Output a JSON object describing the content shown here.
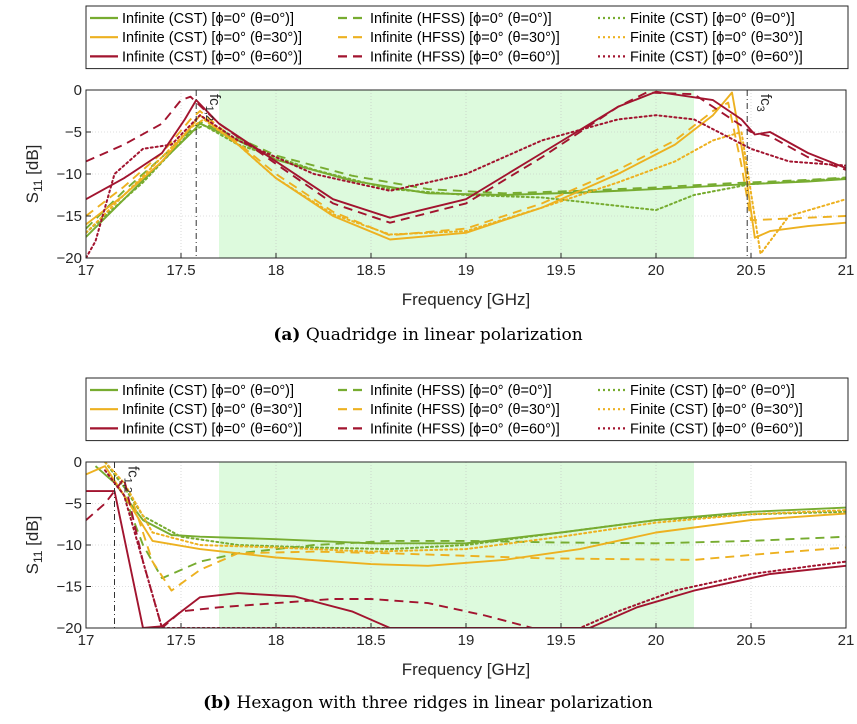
{
  "colors": {
    "green": "#77AC30",
    "yellow": "#EDB120",
    "red": "#A2142F",
    "band": "#DDFADD"
  },
  "legend_entries": [
    {
      "label": "Infinite (CST) [ϕ=0° (θ=0°)]",
      "color": "green",
      "dash": "solid"
    },
    {
      "label": "Infinite (HFSS) [ϕ=0° (θ=0°)]",
      "color": "green",
      "dash": "dashed"
    },
    {
      "label": "Finite (CST) [ϕ=0° (θ=0°)]",
      "color": "green",
      "dash": "dotted"
    },
    {
      "label": "Infinite (CST) [ϕ=0° (θ=30°)]",
      "color": "yellow",
      "dash": "solid"
    },
    {
      "label": "Infinite (HFSS) [ϕ=0° (θ=30°)]",
      "color": "yellow",
      "dash": "dashed"
    },
    {
      "label": "Finite (CST) [ϕ=0° (θ=30°)]",
      "color": "yellow",
      "dash": "dotted"
    },
    {
      "label": "Infinite (CST) [ϕ=0° (θ=60°)]",
      "color": "red",
      "dash": "solid"
    },
    {
      "label": "Infinite (HFSS) [ϕ=0° (θ=60°)]",
      "color": "red",
      "dash": "dashed"
    },
    {
      "label": "Finite (CST) [ϕ=0° (θ=60°)]",
      "color": "red",
      "dash": "dotted"
    }
  ],
  "chart_data": [
    {
      "type": "line",
      "caption_tag": "(a)",
      "caption_text": "Quadridge in linear polarization",
      "xlabel": "Frequency [GHz]",
      "ylabel": "S",
      "ylabel_sub": "11",
      "ylabel_unit": " [dB]",
      "xlim": [
        17,
        21
      ],
      "ylim": [
        -20,
        0
      ],
      "xticks": [
        17,
        17.5,
        18,
        18.5,
        19,
        19.5,
        20,
        20.5,
        21
      ],
      "yticks": [
        0,
        -5,
        -10,
        -15,
        -20
      ],
      "shaded_band": [
        17.7,
        20.2
      ],
      "markers": [
        {
          "x": 17.58,
          "label": "fc",
          "sub": "1,2"
        },
        {
          "x": 20.48,
          "label": "fc",
          "sub": "3"
        }
      ],
      "grid": true,
      "series": [
        {
          "name": "Infinite (CST) [ϕ=0° (θ=0°)]",
          "color": "green",
          "dash": "solid",
          "x": [
            17,
            17.2,
            17.4,
            17.55,
            17.6,
            17.8,
            18,
            18.4,
            18.8,
            19.2,
            19.6,
            20,
            20.4,
            20.8,
            21
          ],
          "y": [
            -17.5,
            -13,
            -8.5,
            -5.2,
            -4,
            -6,
            -8.3,
            -10.8,
            -12.3,
            -12.5,
            -12.2,
            -11.8,
            -11.3,
            -10.9,
            -10.6
          ]
        },
        {
          "name": "Infinite (HFSS) [ϕ=0° (θ=0°)]",
          "color": "green",
          "dash": "dashed",
          "x": [
            17,
            17.2,
            17.4,
            17.55,
            17.6,
            17.8,
            18,
            18.4,
            18.8,
            19.2,
            19.6,
            20,
            20.4,
            20.8,
            21
          ],
          "y": [
            -16.5,
            -12,
            -8,
            -4.8,
            -3.8,
            -5.7,
            -7.8,
            -10.2,
            -11.8,
            -12.3,
            -12,
            -11.6,
            -11.1,
            -10.7,
            -10.4
          ]
        },
        {
          "name": "Finite (CST) [ϕ=0° (θ=0°)]",
          "color": "green",
          "dash": "dotted",
          "x": [
            17,
            17.3,
            17.55,
            17.62,
            17.8,
            18.2,
            18.6,
            19,
            19.4,
            19.8,
            20,
            20.2,
            20.5,
            20.8,
            21
          ],
          "y": [
            -17,
            -11,
            -5,
            -4.2,
            -6.5,
            -9.5,
            -11.8,
            -12.5,
            -12.8,
            -13.8,
            -14.3,
            -12.5,
            -11.2,
            -10.8,
            -10.5
          ]
        },
        {
          "name": "Infinite (CST) [ϕ=0° (θ=30°)]",
          "color": "yellow",
          "dash": "solid",
          "x": [
            17,
            17.2,
            17.4,
            17.55,
            17.6,
            17.8,
            18,
            18.3,
            18.6,
            19,
            19.4,
            19.8,
            20.1,
            20.3,
            20.4,
            20.46,
            20.52,
            20.6,
            20.8,
            21
          ],
          "y": [
            -16,
            -12.5,
            -8.5,
            -4.5,
            -3,
            -6.5,
            -10.5,
            -15,
            -17.8,
            -17,
            -14,
            -10,
            -6.5,
            -3,
            -0.3,
            -8,
            -17.6,
            -16.8,
            -16.2,
            -15.8
          ]
        },
        {
          "name": "Infinite (HFSS) [ϕ=0° (θ=30°)]",
          "color": "yellow",
          "dash": "dashed",
          "x": [
            17,
            17.2,
            17.4,
            17.55,
            17.6,
            17.8,
            18,
            18.3,
            18.6,
            19,
            19.4,
            19.8,
            20.1,
            20.3,
            20.38,
            20.45,
            20.5,
            20.7,
            21
          ],
          "y": [
            -15,
            -11.5,
            -7.5,
            -3.5,
            -2.5,
            -6.3,
            -10,
            -14.5,
            -17.3,
            -16.5,
            -13.5,
            -9.5,
            -6,
            -2.5,
            -1.5,
            -9,
            -15.5,
            -15.3,
            -15
          ]
        },
        {
          "name": "Finite (CST) [ϕ=0° (θ=30°)]",
          "color": "yellow",
          "dash": "dotted",
          "x": [
            17,
            17.2,
            17.4,
            17.55,
            17.62,
            17.8,
            18,
            18.3,
            18.6,
            19,
            19.4,
            19.8,
            20.1,
            20.3,
            20.45,
            20.55,
            20.7,
            21
          ],
          "y": [
            -17,
            -12.5,
            -8,
            -4.5,
            -3.5,
            -6.5,
            -10.5,
            -14.8,
            -17.2,
            -16.8,
            -14,
            -11,
            -8.5,
            -6,
            -5,
            -19.5,
            -15,
            -13
          ]
        },
        {
          "name": "Infinite (CST) [ϕ=0° (θ=60°)]",
          "color": "red",
          "dash": "solid",
          "x": [
            17,
            17.2,
            17.4,
            17.52,
            17.58,
            17.7,
            18,
            18.3,
            18.6,
            19,
            19.4,
            19.8,
            20,
            20.3,
            20.45,
            20.52,
            20.6,
            20.8,
            21
          ],
          "y": [
            -13,
            -10.5,
            -7.5,
            -3.5,
            -1.2,
            -4,
            -8.5,
            -13,
            -15.2,
            -13,
            -7.5,
            -2,
            -0.2,
            -1.2,
            -3.5,
            -5.3,
            -5.0,
            -7.5,
            -9.3
          ]
        },
        {
          "name": "Infinite (HFSS) [ϕ=0° (θ=60°)]",
          "color": "red",
          "dash": "dashed",
          "x": [
            17,
            17.2,
            17.4,
            17.5,
            17.55,
            17.7,
            18,
            18.3,
            18.6,
            19,
            19.4,
            19.8,
            19.95,
            20.2,
            20.4,
            20.5,
            20.6,
            20.8,
            21
          ],
          "y": [
            -8.5,
            -6.5,
            -4,
            -1.2,
            -0.8,
            -4,
            -8.8,
            -13.5,
            -15.8,
            -13.5,
            -8,
            -2,
            -0.3,
            -0.5,
            -3.5,
            -5,
            -5.5,
            -8,
            -9.5
          ]
        },
        {
          "name": "Finite (CST) [ϕ=0° (θ=60°)]",
          "color": "red",
          "dash": "dotted",
          "x": [
            17,
            17.05,
            17.15,
            17.3,
            17.45,
            17.6,
            17.8,
            18.2,
            18.6,
            19,
            19.4,
            19.8,
            20,
            20.2,
            20.5,
            20.7,
            21
          ],
          "y": [
            -20,
            -18,
            -10,
            -7,
            -6.5,
            -3,
            -6,
            -10,
            -12,
            -10,
            -6,
            -3.5,
            -3,
            -3.5,
            -7,
            -8.5,
            -9
          ]
        }
      ]
    },
    {
      "type": "line",
      "caption_tag": "(b)",
      "caption_text": "Hexagon with three ridges in linear polarization",
      "xlabel": "Frequency [GHz]",
      "ylabel": "S",
      "ylabel_sub": "11",
      "ylabel_unit": " [dB]",
      "xlim": [
        17,
        21
      ],
      "ylim": [
        -20,
        0
      ],
      "xticks": [
        17,
        17.5,
        18,
        18.5,
        19,
        19.5,
        20,
        20.5,
        21
      ],
      "yticks": [
        0,
        -5,
        -10,
        -15,
        -20
      ],
      "shaded_band": [
        17.7,
        20.2
      ],
      "markers": [
        {
          "x": 17.15,
          "label": "fc",
          "sub": "1,2"
        }
      ],
      "grid": true,
      "series": [
        {
          "name": "Infinite (CST) [ϕ=0° (θ=0°)]",
          "color": "green",
          "dash": "solid",
          "x": [
            17.05,
            17.15,
            17.3,
            17.45,
            17.6,
            18,
            18.5,
            19,
            19.5,
            20,
            20.5,
            21
          ],
          "y": [
            -0.5,
            -2.5,
            -7,
            -8.8,
            -9,
            -9.3,
            -9.8,
            -9.8,
            -8.5,
            -7,
            -6,
            -5.5
          ]
        },
        {
          "name": "Infinite (HFSS) [ϕ=0° (θ=0°)]",
          "color": "green",
          "dash": "dashed",
          "x": [
            17.2,
            17.3,
            17.4,
            17.6,
            17.8,
            18.2,
            18.6,
            19,
            19.5,
            20,
            20.5,
            21
          ],
          "y": [
            -4,
            -10,
            -14,
            -12,
            -11,
            -10,
            -9.5,
            -9.5,
            -9.7,
            -9.8,
            -9.5,
            -9
          ]
        },
        {
          "name": "Finite (CST) [ϕ=0° (θ=0°)]",
          "color": "green",
          "dash": "dotted",
          "x": [
            17.1,
            17.2,
            17.3,
            17.5,
            17.8,
            18.2,
            18.6,
            19,
            19.5,
            20,
            20.5,
            21
          ],
          "y": [
            0,
            -3,
            -6.5,
            -9,
            -10,
            -10.3,
            -10.5,
            -10,
            -8.5,
            -7,
            -6.3,
            -6
          ]
        },
        {
          "name": "Infinite (CST) [ϕ=0° (θ=30°)]",
          "color": "yellow",
          "dash": "solid",
          "x": [
            17,
            17.1,
            17.2,
            17.35,
            17.6,
            18,
            18.5,
            18.8,
            19.2,
            19.6,
            20,
            20.5,
            21
          ],
          "y": [
            -1.5,
            -0.5,
            -4,
            -9.5,
            -10.5,
            -11.5,
            -12.3,
            -12.5,
            -11.8,
            -10.5,
            -8.5,
            -7,
            -6.2
          ]
        },
        {
          "name": "Infinite (HFSS) [ϕ=0° (θ=30°)]",
          "color": "yellow",
          "dash": "dashed",
          "x": [
            17.25,
            17.35,
            17.45,
            17.6,
            17.8,
            18.2,
            18.6,
            19,
            19.4,
            19.8,
            20.2,
            20.6,
            21
          ],
          "y": [
            -5,
            -12,
            -15.5,
            -13,
            -11,
            -10.8,
            -11,
            -11.3,
            -11.6,
            -11.7,
            -11.8,
            -11,
            -10.3
          ]
        },
        {
          "name": "Finite (CST) [ϕ=0° (θ=30°)]",
          "color": "yellow",
          "dash": "dotted",
          "x": [
            17.1,
            17.2,
            17.35,
            17.6,
            18,
            18.5,
            19,
            19.5,
            20,
            20.5,
            21
          ],
          "y": [
            0,
            -2.5,
            -8.5,
            -10,
            -10.3,
            -10.8,
            -10.5,
            -9,
            -7.3,
            -6.3,
            -5.8
          ]
        },
        {
          "name": "Infinite (CST) [ϕ=0° (θ=60°)]",
          "color": "red",
          "dash": "solid",
          "x": [
            17,
            17.15,
            17.3,
            17.4,
            17.6,
            17.8,
            18.1,
            18.4,
            18.6,
            19.65,
            19.9,
            20.2,
            20.6,
            21
          ],
          "y": [
            -3.5,
            -3.5,
            -20,
            -19.8,
            -16.3,
            -15.8,
            -16.2,
            -18,
            -20,
            -20,
            -17.5,
            -15.5,
            -13.5,
            -12.5
          ]
        },
        {
          "name": "Infinite (HFSS) [ϕ=0° (θ=60°)]",
          "color": "red",
          "dash": "dashed",
          "x": [
            17,
            17.1,
            17.2,
            17.3,
            17.4,
            17.5,
            17.7,
            18,
            18.3,
            18.5,
            18.8,
            19.1,
            19.35
          ],
          "y": [
            -7,
            -5,
            -2,
            -12,
            -20,
            -18,
            -17.5,
            -17,
            -16.5,
            -16.5,
            -17,
            -18.5,
            -20
          ]
        },
        {
          "name": "Finite (CST) [ϕ=0° (θ=60°)]",
          "color": "red",
          "dash": "dotted",
          "x": [
            17.1,
            17.2,
            17.3,
            17.4,
            17.5,
            19.6,
            19.8,
            20.1,
            20.5,
            21
          ],
          "y": [
            -1,
            -4,
            -12,
            -20,
            -20,
            -20,
            -18,
            -15.5,
            -13.5,
            -12
          ]
        }
      ]
    }
  ]
}
